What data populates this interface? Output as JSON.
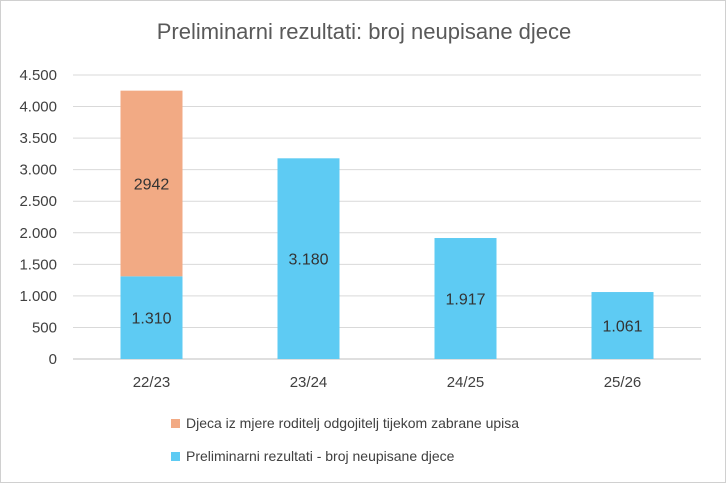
{
  "chart_data": {
    "type": "bar",
    "stacked": true,
    "title": "Preliminarni rezultati: broj neupisane djece",
    "categories": [
      "22/23",
      "23/24",
      "24/25",
      "25/26"
    ],
    "series": [
      {
        "name": "Preliminarni rezultati - broj neupisane djece",
        "values": [
          1310,
          3180,
          1917,
          1061
        ],
        "labels": [
          "1.310",
          "3.180",
          "1.917",
          "1.061"
        ],
        "color": "#5ecbf3"
      },
      {
        "name": "Djeca iz mjere roditelj odgojitelj tijekom zabrane upisa",
        "values": [
          2942,
          null,
          null,
          null
        ],
        "labels": [
          "2942",
          "",
          "",
          ""
        ],
        "color": "#f2aa84"
      }
    ],
    "ylim": [
      0,
      4500
    ],
    "yticks": [
      0,
      500,
      1000,
      1500,
      2000,
      2500,
      3000,
      3500,
      4000,
      4500
    ],
    "ytick_labels": [
      "0",
      "500",
      "1.000",
      "1.500",
      "2.000",
      "2.500",
      "3.000",
      "3.500",
      "4.000",
      "4.500"
    ],
    "grid": true,
    "legend_position": "bottom"
  }
}
